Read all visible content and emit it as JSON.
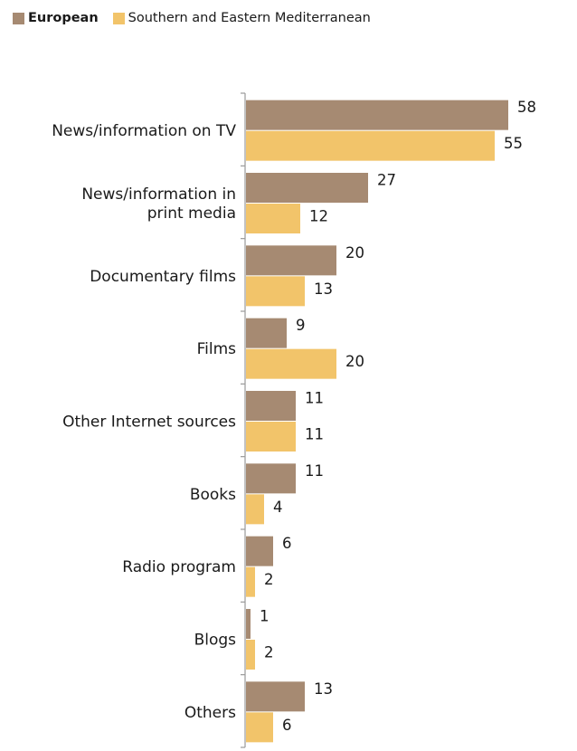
{
  "chart_data": {
    "type": "bar",
    "orientation": "horizontal",
    "categories": [
      [
        "News/information on TV"
      ],
      [
        "News/information in",
        "print media"
      ],
      [
        "Documentary films"
      ],
      [
        "Films"
      ],
      [
        "Other Internet sources"
      ],
      [
        "Books"
      ],
      [
        "Radio program"
      ],
      [
        "Blogs"
      ],
      [
        "Others"
      ]
    ],
    "series": [
      {
        "name": "European",
        "color": "#a68a72",
        "values": [
          58,
          27,
          20,
          9,
          11,
          11,
          6,
          1,
          13
        ]
      },
      {
        "name": "Southern and Eastern Mediterranean",
        "color": "#f2c46a",
        "values": [
          55,
          12,
          13,
          20,
          11,
          4,
          2,
          2,
          6
        ]
      }
    ],
    "xlim": [
      0,
      60
    ],
    "legend": "top-left",
    "grid": false,
    "data_labels": true
  }
}
